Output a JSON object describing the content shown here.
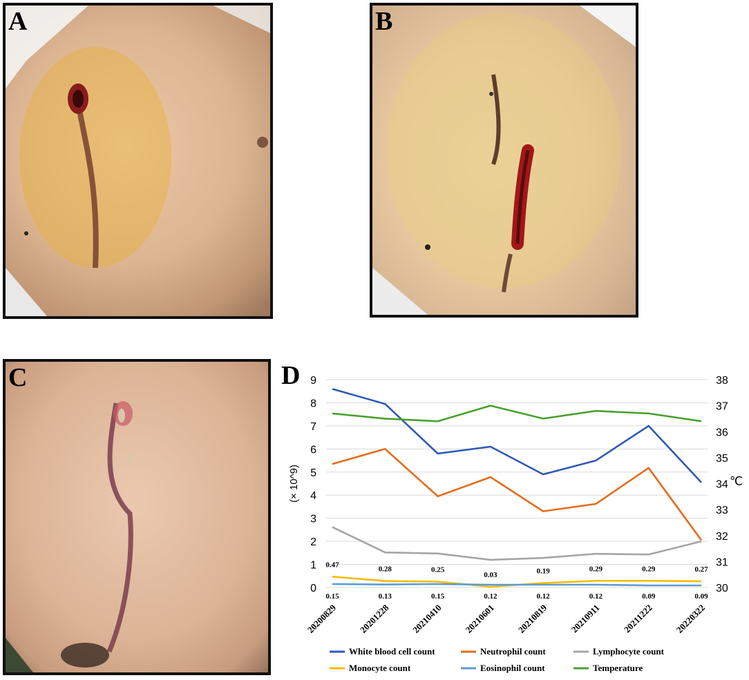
{
  "panels": {
    "a": {
      "label": "A"
    },
    "b": {
      "label": "B"
    },
    "c": {
      "label": "C"
    },
    "d": {
      "label": "D"
    }
  },
  "chart_data": {
    "type": "line",
    "x": [
      "20200829",
      "20201228",
      "20210410",
      "20210601",
      "20210819",
      "20210911",
      "20211222",
      "20220322"
    ],
    "ylabel": "(× 10^9)",
    "y2label": "℃",
    "ylim": [
      0,
      9
    ],
    "y2lim": [
      30,
      38
    ],
    "y_ticks": [
      "0",
      "1",
      "2",
      "3",
      "4",
      "5",
      "6",
      "7",
      "8",
      "9"
    ],
    "y2_ticks": [
      "30",
      "31",
      "32",
      "33",
      "34",
      "35",
      "36",
      "37",
      "38"
    ],
    "grid": true,
    "legend_position": "bottom",
    "series": [
      {
        "name": "White blood cell count",
        "axis": "left",
        "color": "#2e59b5",
        "values": [
          8.6,
          7.95,
          5.8,
          6.1,
          4.9,
          5.5,
          7.0,
          4.55
        ]
      },
      {
        "name": "Neutrophil count",
        "axis": "left",
        "color": "#e46c1b",
        "values": [
          5.35,
          6.0,
          3.95,
          4.78,
          3.3,
          3.62,
          5.18,
          2.05
        ]
      },
      {
        "name": "Lymphocyte count",
        "axis": "left",
        "color": "#a5a5a5",
        "values": [
          2.62,
          1.52,
          1.47,
          1.2,
          1.28,
          1.46,
          1.43,
          2.0
        ]
      },
      {
        "name": "Monocyte count",
        "axis": "left",
        "color": "#f5bd00",
        "values": [
          0.47,
          0.28,
          0.25,
          0.03,
          0.19,
          0.29,
          0.29,
          0.27
        ],
        "labels": [
          "0.47",
          "0.28",
          "0.25",
          "0.03",
          "0.19",
          "0.29",
          "0.29",
          "0.27"
        ]
      },
      {
        "name": "Eosinophil count",
        "axis": "left",
        "color": "#5b9bd5",
        "values": [
          0.15,
          0.13,
          0.15,
          0.12,
          0.12,
          0.12,
          0.09,
          0.09
        ],
        "labels": [
          "0.15",
          "0.13",
          "0.15",
          "0.12",
          "0.12",
          "0.12",
          "0.09",
          "0.09"
        ]
      },
      {
        "name": "Temperature",
        "axis": "right",
        "color": "#4aa02c",
        "values": [
          36.7,
          36.5,
          36.4,
          37.0,
          36.5,
          36.8,
          36.7,
          36.4
        ]
      }
    ]
  }
}
